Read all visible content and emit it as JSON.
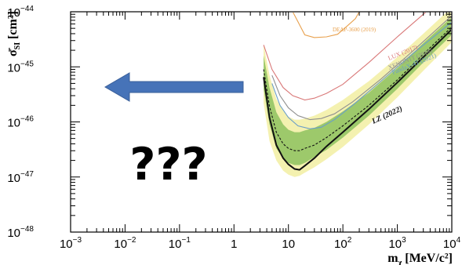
{
  "chart_data": {
    "type": "line",
    "title": "",
    "xscale": "log",
    "yscale": "log",
    "xlim": [
      0.001,
      10000
    ],
    "ylim": [
      1e-48,
      1e-44
    ],
    "xlabel_main": "m",
    "xlabel_sub": "χ",
    "xlabel_unit": "[MeV/c²]",
    "ylabel_main": "σ̄",
    "ylabel_sub": "SI",
    "ylabel_unit": "[cm²]",
    "x_ticks": [
      {
        "base": "10",
        "exp": "−3"
      },
      {
        "base": "10",
        "exp": "−2"
      },
      {
        "base": "10",
        "exp": "−1"
      },
      {
        "base": "1",
        "exp": ""
      },
      {
        "base": "10",
        "exp": ""
      },
      {
        "base": "10",
        "exp": "2"
      },
      {
        "base": "10",
        "exp": "3"
      },
      {
        "base": "10",
        "exp": "4"
      }
    ],
    "y_ticks": [
      {
        "base": "10",
        "exp": "−44"
      },
      {
        "base": "10",
        "exp": "−45"
      },
      {
        "base": "10",
        "exp": "−46"
      },
      {
        "base": "10",
        "exp": "−47"
      },
      {
        "base": "10",
        "exp": "−48"
      }
    ],
    "series": [
      {
        "name": "DEAP-3600 (2019)",
        "color": "#e8a04c",
        "x": [
          12,
          20,
          30,
          50,
          80,
          120,
          170,
          200
        ],
        "y": [
          1e-44,
          3.8e-45,
          3.4e-45,
          3.5e-45,
          3.9e-45,
          5.5e-45,
          7.5e-45,
          1e-44
        ]
      },
      {
        "name": "LUX (2017)",
        "color": "#d97878",
        "x": [
          3.5,
          5,
          8,
          12,
          20,
          30,
          50,
          100,
          300,
          1000,
          3000,
          10000
        ],
        "y": [
          2.5e-45,
          9e-46,
          4.2e-46,
          3e-46,
          2.5e-46,
          2.7e-46,
          3.3e-46,
          4.8e-46,
          1.2e-45,
          3.5e-45,
          9e-45,
          2.5e-44
        ]
      },
      {
        "name": "XENON1T (2018)",
        "color": "#909090",
        "x": [
          5,
          7,
          10,
          15,
          25,
          40,
          70,
          150,
          500,
          2000,
          10000
        ],
        "y": [
          7e-46,
          3e-46,
          1.8e-46,
          1.3e-46,
          1.1e-46,
          1.15e-46,
          1.4e-46,
          2.3e-46,
          6e-46,
          2e-45,
          8.5e-45
        ]
      },
      {
        "name": "PandaX-4T (2021)",
        "color": "#6a9ec8",
        "x": [
          5,
          7,
          10,
          15,
          25,
          40,
          70,
          150,
          500,
          2000,
          10000
        ],
        "y": [
          5e-46,
          2e-46,
          1.2e-46,
          8.5e-47,
          7.5e-47,
          8e-47,
          1.1e-46,
          2e-46,
          5.5e-46,
          1.8e-45,
          6.5e-45
        ]
      },
      {
        "name": "LZ (2022)",
        "color": "#111111",
        "x": [
          3.5,
          4.5,
          6,
          8,
          10,
          13,
          16,
          20,
          30,
          50,
          100,
          300,
          1000,
          3000,
          10000
        ],
        "y": [
          6.5e-46,
          1.2e-46,
          3.8e-47,
          2.2e-47,
          1.7e-47,
          1.4e-47,
          1.35e-47,
          1.6e-47,
          2.2e-47,
          3.6e-47,
          6.5e-47,
          1.7e-46,
          5.2e-46,
          1.5e-45,
          4.8e-45
        ]
      },
      {
        "name": "",
        "color": "#111111",
        "style": "dashed",
        "x": [
          3.5,
          4.5,
          6,
          8,
          10,
          13,
          16,
          20,
          30,
          50,
          100,
          300,
          1000,
          3000,
          10000
        ],
        "y": [
          9e-46,
          1.9e-46,
          6.5e-47,
          4e-47,
          3.3e-47,
          3e-47,
          3e-47,
          3.3e-47,
          3.8e-47,
          5.2e-47,
          8.5e-47,
          2e-46,
          5.8e-46,
          1.7e-45,
          5.3e-45
        ]
      }
    ],
    "bands": [
      {
        "color": "#f4f1b0",
        "x": [
          3.5,
          4.5,
          6,
          8,
          10,
          13,
          16,
          20,
          30,
          50,
          100,
          300,
          1000,
          3000,
          10000
        ],
        "lower": [
          2.2e-46,
          4.5e-47,
          2e-47,
          1.3e-47,
          1.1e-47,
          1e-47,
          1.05e-47,
          1.2e-47,
          1.5e-47,
          2.1e-47,
          3.5e-47,
          9e-47,
          2.8e-46,
          8.5e-46,
          2.8e-45
        ],
        "upper": [
          2.5e-45,
          7e-46,
          2.6e-46,
          1.6e-46,
          1.25e-46,
          1.1e-46,
          1.1e-46,
          1.15e-46,
          1.3e-46,
          1.65e-46,
          2.5e-46,
          5.5e-46,
          1.5e-45,
          4e-45,
          1.2e-44
        ]
      },
      {
        "color": "#9dc96b",
        "x": [
          3.5,
          4.5,
          6,
          8,
          10,
          13,
          16,
          20,
          30,
          50,
          100,
          300,
          1000,
          3000,
          10000
        ],
        "lower": [
          4e-46,
          9e-47,
          3.3e-47,
          2.2e-47,
          1.8e-47,
          1.65e-47,
          1.65e-47,
          1.8e-47,
          2.3e-47,
          3.1e-47,
          5.2e-47,
          1.3e-46,
          4e-46,
          1.2e-45,
          3.8e-45
        ],
        "upper": [
          1.6e-45,
          4.2e-46,
          1.5e-46,
          9e-47,
          7.2e-47,
          6.5e-47,
          6.5e-47,
          7e-47,
          7.8e-47,
          1e-46,
          1.55e-46,
          3.4e-46,
          9.5e-46,
          2.7e-45,
          8e-45
        ]
      }
    ],
    "arrow_color": "#4673b8",
    "annotation": "???",
    "grid": false,
    "legend": "none (labels written next to curves)"
  }
}
